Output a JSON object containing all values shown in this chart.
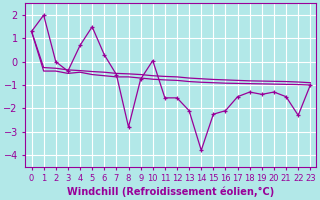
{
  "xlabel": "Windchill (Refroidissement éolien,°C)",
  "background_color": "#b2e8e8",
  "grid_color": "#c0dede",
  "line_color": "#990099",
  "ylim": [
    -4.5,
    2.5
  ],
  "xlim": [
    -0.5,
    23.5
  ],
  "yticks": [
    -4,
    -3,
    -2,
    -1,
    0,
    1,
    2
  ],
  "xticks": [
    0,
    1,
    2,
    3,
    4,
    5,
    6,
    7,
    8,
    9,
    10,
    11,
    12,
    13,
    14,
    15,
    16,
    17,
    18,
    19,
    20,
    21,
    22,
    23
  ],
  "series1_x": [
    0,
    1,
    2,
    3,
    4,
    5,
    6,
    7,
    8,
    9,
    10,
    11,
    12,
    13,
    14,
    15,
    16,
    17,
    18,
    19,
    20,
    21,
    22,
    23
  ],
  "series1_y": [
    1.3,
    2.0,
    0.0,
    -0.4,
    0.7,
    1.5,
    0.3,
    -0.55,
    -2.8,
    -0.75,
    0.05,
    -1.55,
    -1.55,
    -2.1,
    -3.8,
    -2.25,
    -2.1,
    -1.5,
    -1.3,
    -1.4,
    -1.3,
    -1.5,
    -2.3,
    -1.0
  ],
  "series2_x": [
    0,
    1,
    2,
    3,
    4,
    5,
    6,
    7,
    8,
    9,
    10,
    11,
    12,
    13,
    14,
    15,
    16,
    17,
    18,
    19,
    20,
    21,
    22,
    23
  ],
  "series2_y": [
    1.3,
    -0.4,
    -0.4,
    -0.5,
    -0.45,
    -0.55,
    -0.6,
    -0.65,
    -0.65,
    -0.7,
    -0.75,
    -0.78,
    -0.8,
    -0.85,
    -0.88,
    -0.9,
    -0.92,
    -0.93,
    -0.94,
    -0.95,
    -0.96,
    -0.97,
    -0.98,
    -1.0
  ],
  "series3_x": [
    0,
    1,
    2,
    3,
    4,
    5,
    6,
    7,
    8,
    9,
    10,
    11,
    12,
    13,
    14,
    15,
    16,
    17,
    18,
    19,
    20,
    21,
    22,
    23
  ],
  "series3_y": [
    1.3,
    -0.25,
    -0.28,
    -0.35,
    -0.38,
    -0.42,
    -0.45,
    -0.5,
    -0.52,
    -0.55,
    -0.6,
    -0.63,
    -0.65,
    -0.7,
    -0.73,
    -0.76,
    -0.78,
    -0.8,
    -0.82,
    -0.83,
    -0.84,
    -0.85,
    -0.87,
    -0.9
  ],
  "fontsize_xlabel": 7,
  "fontsize_ytick": 7,
  "fontsize_xtick": 6
}
